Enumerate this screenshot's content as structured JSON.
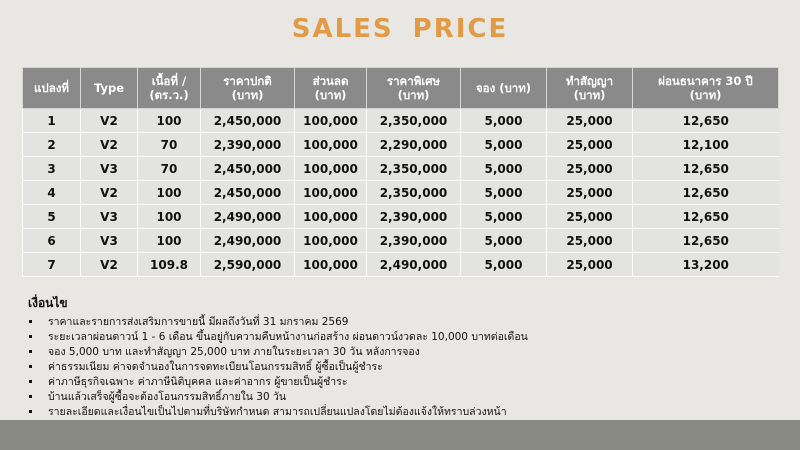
{
  "header": {
    "title": "SALES PRICE"
  },
  "table": {
    "columns": [
      "แปลงที่",
      "Type",
      "เนื้อที่ /\n(ตร.ว.)",
      "ราคาปกติ\n(บาท)",
      "ส่วนลด\n(บาท)",
      "ราคาพิเศษ\n(บาท)",
      "จอง (บาท)",
      "ทำสัญญา\n(บาท)",
      "ผ่อนธนาคาร 30 ปี\n(บาท)"
    ],
    "rows": [
      [
        "1",
        "V2",
        "100",
        "2,450,000",
        "100,000",
        "2,350,000",
        "5,000",
        "25,000",
        "12,650"
      ],
      [
        "2",
        "V2",
        "70",
        "2,390,000",
        "100,000",
        "2,290,000",
        "5,000",
        "25,000",
        "12,100"
      ],
      [
        "3",
        "V3",
        "70",
        "2,450,000",
        "100,000",
        "2,350,000",
        "5,000",
        "25,000",
        "12,650"
      ],
      [
        "4",
        "V2",
        "100",
        "2,450,000",
        "100,000",
        "2,350,000",
        "5,000",
        "25,000",
        "12,650"
      ],
      [
        "5",
        "V3",
        "100",
        "2,490,000",
        "100,000",
        "2,390,000",
        "5,000",
        "25,000",
        "12,650"
      ],
      [
        "6",
        "V3",
        "100",
        "2,490,000",
        "100,000",
        "2,390,000",
        "5,000",
        "25,000",
        "12,650"
      ],
      [
        "7",
        "V2",
        "109.8",
        "2,590,000",
        "100,000",
        "2,490,000",
        "5,000",
        "25,000",
        "13,200"
      ]
    ]
  },
  "conditions": {
    "title": "เงื่อนไข",
    "items": [
      "ราคาและรายการส่งเสริมการขายนี้ มีผลถึงวันที่ 31 มกราคม 2569",
      "ระยะเวลาผ่อนดาวน์ 1 - 6 เดือน ขึ้นอยู่กับความคืบหน้างานก่อสร้าง ผ่อนดาวน์งวดละ 10,000 บาทต่อเดือน",
      "จอง 5,000 บาท และทำสัญญา 25,000 บาท ภายในระยะเวลา 30 วัน หลังการจอง",
      "ค่าธรรมเนียม ค่าจดจำนองในการจดทะเบียนโอนกรรมสิทธิ์ ผู้ซื้อเป็นผู้ชำระ",
      "ค่าภาษีธุรกิจเฉพาะ ค่าภาษีนิติบุคคล และค่าอากร ผู้ขายเป็นผู้ชำระ",
      "บ้านแล้วเสร็จผู้ซื้อจะต้องโอนกรรมสิทธิ์ภายใน 30 วัน",
      "รายละเอียดและเงื่อนไขเป็นไปตามที่บริษัทกำหนด สามารถเปลี่ยนแปลงโดยไม่ต้องแจ้งให้ทราบล่วงหน้า"
    ]
  }
}
